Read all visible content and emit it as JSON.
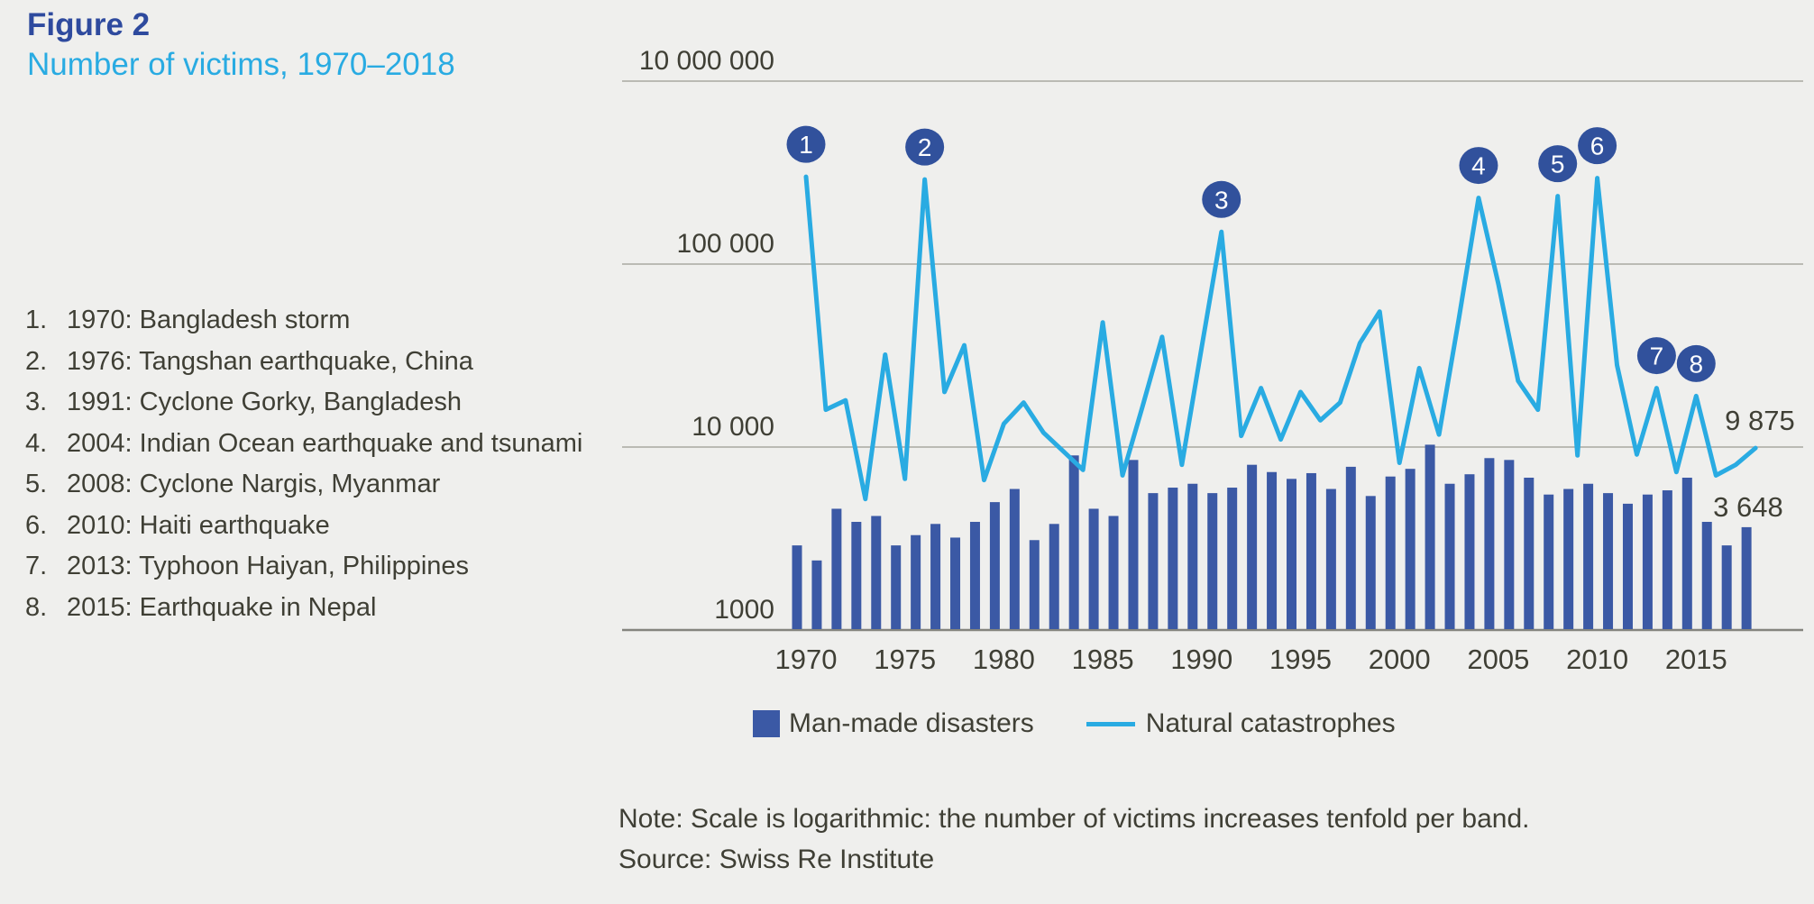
{
  "title": "Figure 2",
  "subtitle": "Number of victims, 1970–2018",
  "events": [
    {
      "num": "1.",
      "text": "1970: Bangladesh storm"
    },
    {
      "num": "2.",
      "text": "1976: Tangshan earthquake, China"
    },
    {
      "num": "3.",
      "text": "1991: Cyclone Gorky, Bangladesh"
    },
    {
      "num": "4.",
      "text": "2004: Indian Ocean earthquake and tsunami"
    },
    {
      "num": "5.",
      "text": "2008: Cyclone Nargis, Myanmar"
    },
    {
      "num": "6.",
      "text": "2010: Haiti earthquake"
    },
    {
      "num": "7.",
      "text": "2013: Typhoon Haiyan, Philippines"
    },
    {
      "num": "8.",
      "text": "2015: Earthquake in Nepal"
    }
  ],
  "legend": {
    "bar_label": "Man-made disasters",
    "line_label": "Natural catastrophes"
  },
  "note": "Note: Scale is logarithmic: the number of victims increases tenfold per band.",
  "source": "Source: Swiss Re Institute",
  "colors": {
    "background": "#EFEFED",
    "text": "#3F3F35",
    "title": "#2E4A9E",
    "subtitle": "#29ABE2",
    "bar": "#3B59A5",
    "line": "#29ABE2",
    "marker": "#31519C",
    "grid": "#A8A8A2",
    "axis": "#84847E"
  },
  "chart_data": {
    "type": "bar+line",
    "title": "Number of victims, 1970–2018",
    "y_scale": "log",
    "grid": "horizontal",
    "x": [
      1970,
      1971,
      1972,
      1973,
      1974,
      1975,
      1976,
      1977,
      1978,
      1979,
      1980,
      1981,
      1982,
      1983,
      1984,
      1985,
      1986,
      1987,
      1988,
      1989,
      1990,
      1991,
      1992,
      1993,
      1994,
      1995,
      1996,
      1997,
      1998,
      1999,
      2000,
      2001,
      2002,
      2003,
      2004,
      2005,
      2006,
      2007,
      2008,
      2009,
      2010,
      2011,
      2012,
      2013,
      2014,
      2015,
      2016,
      2017,
      2018
    ],
    "series": [
      {
        "name": "Man-made disasters",
        "type": "bar",
        "values": [
          2900,
          2400,
          4600,
          3900,
          4200,
          2900,
          3300,
          3800,
          3200,
          3900,
          5000,
          5900,
          3100,
          3800,
          9000,
          4600,
          4200,
          8500,
          5600,
          6000,
          6300,
          5600,
          6000,
          8000,
          7300,
          6700,
          7200,
          5900,
          7800,
          5400,
          6900,
          7600,
          10300,
          6300,
          7100,
          8700,
          8500,
          6800,
          5500,
          5900,
          6300,
          5600,
          4900,
          5500,
          5800,
          6800,
          3900,
          2900,
          3648
        ]
      },
      {
        "name": "Natural catastrophes",
        "type": "line",
        "values": [
          300000,
          16000,
          18000,
          5200,
          32000,
          6700,
          290000,
          20000,
          36000,
          6600,
          13400,
          17500,
          12000,
          9500,
          7500,
          48000,
          7000,
          16500,
          40000,
          8000,
          35000,
          150000,
          11500,
          21000,
          11000,
          20000,
          14000,
          17500,
          37000,
          55000,
          8200,
          27000,
          11700,
          50000,
          230000,
          78000,
          23000,
          16000,
          235000,
          9000,
          295000,
          28000,
          9100,
          21000,
          7300,
          19000,
          7000,
          8000,
          9875
        ]
      }
    ],
    "markers": [
      {
        "n": "1",
        "year": 1970
      },
      {
        "n": "2",
        "year": 1976
      },
      {
        "n": "3",
        "year": 1991
      },
      {
        "n": "4",
        "year": 2004
      },
      {
        "n": "5",
        "year": 2008
      },
      {
        "n": "6",
        "year": 2010
      },
      {
        "n": "7",
        "year": 2013
      },
      {
        "n": "8",
        "year": 2015
      }
    ],
    "end_labels": {
      "line": "9 875",
      "bar": "3 648"
    },
    "y_axis_labels": [
      "1000",
      "10 000",
      "100 000",
      "10 000 000"
    ],
    "x_ticks": [
      1970,
      1975,
      1980,
      1985,
      1990,
      1995,
      2000,
      2005,
      2010,
      2015
    ]
  }
}
